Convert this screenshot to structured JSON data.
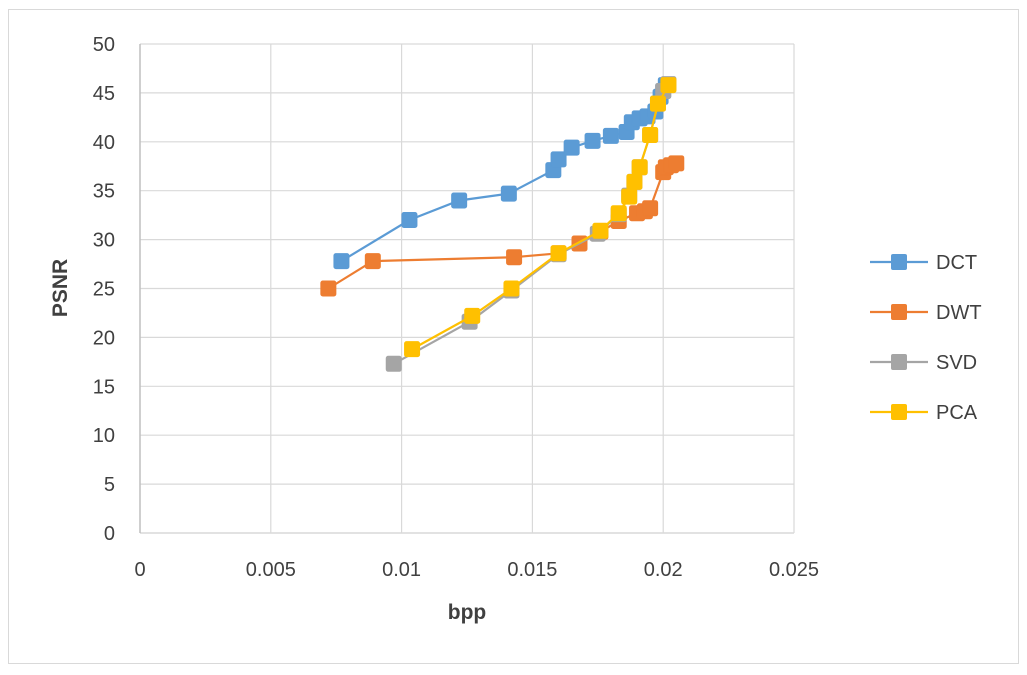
{
  "chart_data": {
    "type": "scatter",
    "title": "",
    "xlabel": "bpp",
    "ylabel": "PSNR",
    "xlim": [
      0,
      0.025
    ],
    "ylim": [
      0,
      50
    ],
    "x_ticks": [
      "0",
      "0.005",
      "0.01",
      "0.015",
      "0.02",
      "0.025"
    ],
    "y_ticks": [
      "0",
      "5",
      "10",
      "15",
      "20",
      "25",
      "30",
      "35",
      "40",
      "45",
      "50"
    ],
    "grid": true,
    "legend_position": "right",
    "marker": "square",
    "series": [
      {
        "name": "DCT",
        "color": "#5b9bd5",
        "points": [
          [
            0.0077,
            27.8
          ],
          [
            0.0103,
            32.0
          ],
          [
            0.0122,
            34.0
          ],
          [
            0.0141,
            34.7
          ],
          [
            0.0158,
            37.1
          ],
          [
            0.016,
            38.2
          ],
          [
            0.0165,
            39.4
          ],
          [
            0.0173,
            40.1
          ],
          [
            0.018,
            40.6
          ],
          [
            0.0186,
            41.0
          ],
          [
            0.0188,
            42.0
          ],
          [
            0.0191,
            42.4
          ],
          [
            0.0194,
            42.6
          ],
          [
            0.0197,
            43.1
          ],
          [
            0.0199,
            44.6
          ],
          [
            0.02,
            45.2
          ],
          [
            0.0201,
            45.8
          ]
        ]
      },
      {
        "name": "DWT",
        "color": "#ed7d31",
        "points": [
          [
            0.0072,
            25.0
          ],
          [
            0.0089,
            27.8
          ],
          [
            0.0143,
            28.2
          ],
          [
            0.016,
            28.6
          ],
          [
            0.0168,
            29.6
          ],
          [
            0.0176,
            30.8
          ],
          [
            0.0183,
            31.9
          ],
          [
            0.019,
            32.7
          ],
          [
            0.0193,
            32.9
          ],
          [
            0.0195,
            33.2
          ],
          [
            0.02,
            36.9
          ],
          [
            0.0201,
            37.4
          ],
          [
            0.0203,
            37.6
          ],
          [
            0.0205,
            37.8
          ]
        ]
      },
      {
        "name": "SVD",
        "color": "#a5a5a5",
        "points": [
          [
            0.0097,
            17.3
          ],
          [
            0.0126,
            21.6
          ],
          [
            0.0142,
            24.8
          ],
          [
            0.016,
            28.5
          ],
          [
            0.0175,
            30.6
          ],
          [
            0.0183,
            32.6
          ],
          [
            0.0187,
            34.5
          ],
          [
            0.0189,
            35.9
          ],
          [
            0.0191,
            37.4
          ],
          [
            0.0195,
            40.7
          ],
          [
            0.0198,
            43.9
          ],
          [
            0.02,
            45.2
          ],
          [
            0.0202,
            45.9
          ]
        ]
      },
      {
        "name": "PCA",
        "color": "#ffc000",
        "points": [
          [
            0.0104,
            18.8
          ],
          [
            0.0127,
            22.2
          ],
          [
            0.0142,
            25.0
          ],
          [
            0.016,
            28.6
          ],
          [
            0.0176,
            30.9
          ],
          [
            0.0183,
            32.7
          ],
          [
            0.0187,
            34.4
          ],
          [
            0.0189,
            35.9
          ],
          [
            0.0191,
            37.4
          ],
          [
            0.0195,
            40.7
          ],
          [
            0.0198,
            43.9
          ],
          [
            0.0202,
            45.8
          ]
        ]
      }
    ]
  }
}
